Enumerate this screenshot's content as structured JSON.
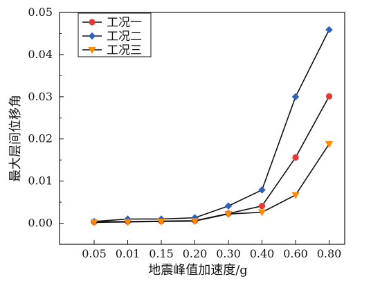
{
  "chart_data": {
    "type": "line",
    "categories": [
      "0.05",
      "0.01",
      "0.15",
      "0.20",
      "0.30",
      "0.40",
      "0.60",
      "0.80"
    ],
    "xlabel": "地震峰值加速度/g",
    "ylabel": "最大层间位移角",
    "ylim": [
      -0.005,
      0.05
    ],
    "yticks": [
      "0.00",
      "0.01",
      "0.02",
      "0.03",
      "0.04",
      "0.05"
    ],
    "legend_position": "top-left",
    "series": [
      {
        "name": "工况一",
        "color": "#e53935",
        "marker": "circle",
        "values": [
          0.0003,
          0.0004,
          0.0005,
          0.0006,
          0.0023,
          0.0041,
          0.0156,
          0.0301
        ]
      },
      {
        "name": "工况二",
        "color": "#2f63b8",
        "marker": "diamond",
        "values": [
          0.0004,
          0.001,
          0.001,
          0.0013,
          0.0041,
          0.0079,
          0.03,
          0.0459
        ]
      },
      {
        "name": "工况三",
        "color": "#ff8c00",
        "marker": "triangle-down",
        "values": [
          0.0002,
          0.0003,
          0.0004,
          0.0005,
          0.0022,
          0.0026,
          0.0067,
          0.0188
        ]
      }
    ]
  }
}
